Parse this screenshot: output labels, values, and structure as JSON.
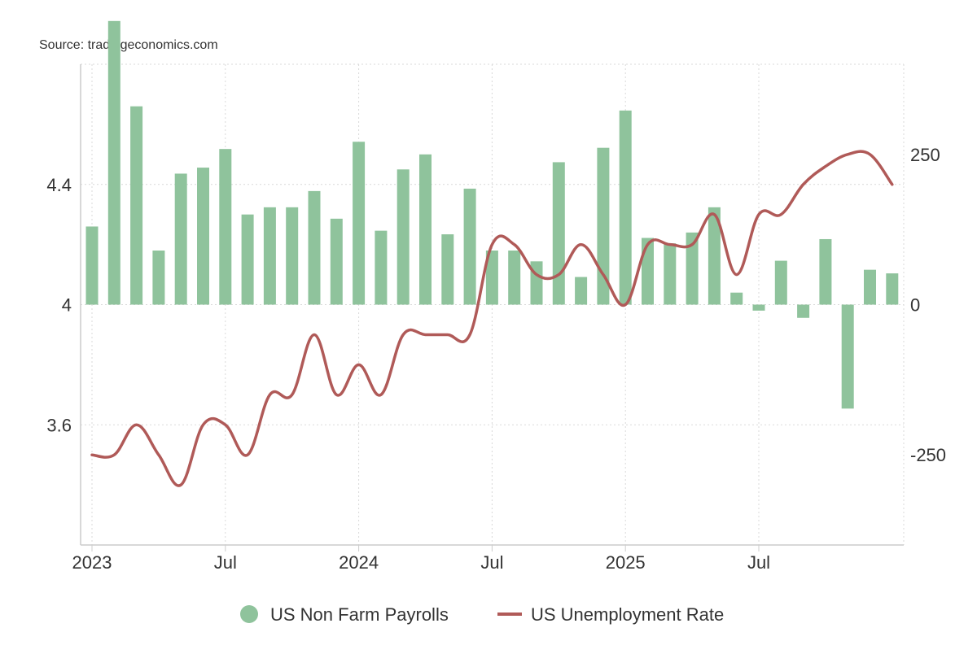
{
  "source": "Source: tradingeconomics.com",
  "colors": {
    "bar": "#8fc39c",
    "line": "#b05a58",
    "grid": "#d9d9d9",
    "axis": "#cccccc",
    "text": "#333333"
  },
  "chart_data": {
    "type": "bar",
    "title": "",
    "grid": true,
    "legend_placement": "bottom",
    "x": [
      "2023-01",
      "2023-02",
      "2023-03",
      "2023-04",
      "2023-05",
      "2023-06",
      "2023-07",
      "2023-08",
      "2023-09",
      "2023-10",
      "2023-11",
      "2023-12",
      "2024-01",
      "2024-02",
      "2024-03",
      "2024-04",
      "2024-05",
      "2024-06",
      "2024-07",
      "2024-08",
      "2024-09",
      "2024-10",
      "2024-11",
      "2024-12",
      "2025-01",
      "2025-02",
      "2025-03",
      "2025-04",
      "2025-05",
      "2025-06",
      "2025-07",
      "2025-08",
      "2025-09",
      "2025-10",
      "2025-11",
      "2025-12",
      "2026-01"
    ],
    "x_tick_labels": [
      {
        "x": "2023-01",
        "label": "2023"
      },
      {
        "x": "2023-07",
        "label": "Jul"
      },
      {
        "x": "2024-01",
        "label": "2024"
      },
      {
        "x": "2024-07",
        "label": "Jul"
      },
      {
        "x": "2025-01",
        "label": "2025"
      },
      {
        "x": "2025-07",
        "label": "Jul"
      }
    ],
    "y_left": {
      "ylim": [
        3.2,
        4.8
      ],
      "ticks": [
        3.6,
        4,
        4.4
      ],
      "tick_labels": [
        "3.6",
        "4",
        "4.4"
      ]
    },
    "y_right": {
      "ylim": [
        -400,
        400
      ],
      "ticks": [
        -250,
        0,
        250
      ],
      "tick_labels": [
        "-250",
        "0",
        "250"
      ]
    },
    "series": [
      {
        "name": "US Non Farm Payrolls",
        "type": "bar",
        "axis": "right",
        "values": [
          130,
          472,
          330,
          90,
          218,
          228,
          259,
          150,
          162,
          162,
          189,
          143,
          271,
          123,
          225,
          250,
          117,
          193,
          90,
          90,
          72,
          237,
          46,
          261,
          323,
          111,
          102,
          120,
          162,
          20,
          -10,
          73,
          -22,
          109,
          -173,
          58,
          52
        ]
      },
      {
        "name": "US Unemployment Rate",
        "type": "line",
        "axis": "left",
        "values": [
          3.5,
          3.5,
          3.6,
          3.5,
          3.4,
          3.6,
          3.6,
          3.5,
          3.7,
          3.7,
          3.9,
          3.7,
          3.8,
          3.7,
          3.9,
          3.9,
          3.9,
          3.9,
          4.2,
          4.2,
          4.1,
          4.1,
          4.2,
          4.1,
          4.0,
          4.2,
          4.2,
          4.2,
          4.3,
          4.1,
          4.3,
          4.3,
          4.4,
          4.46,
          4.5,
          4.5,
          4.4
        ]
      }
    ]
  }
}
